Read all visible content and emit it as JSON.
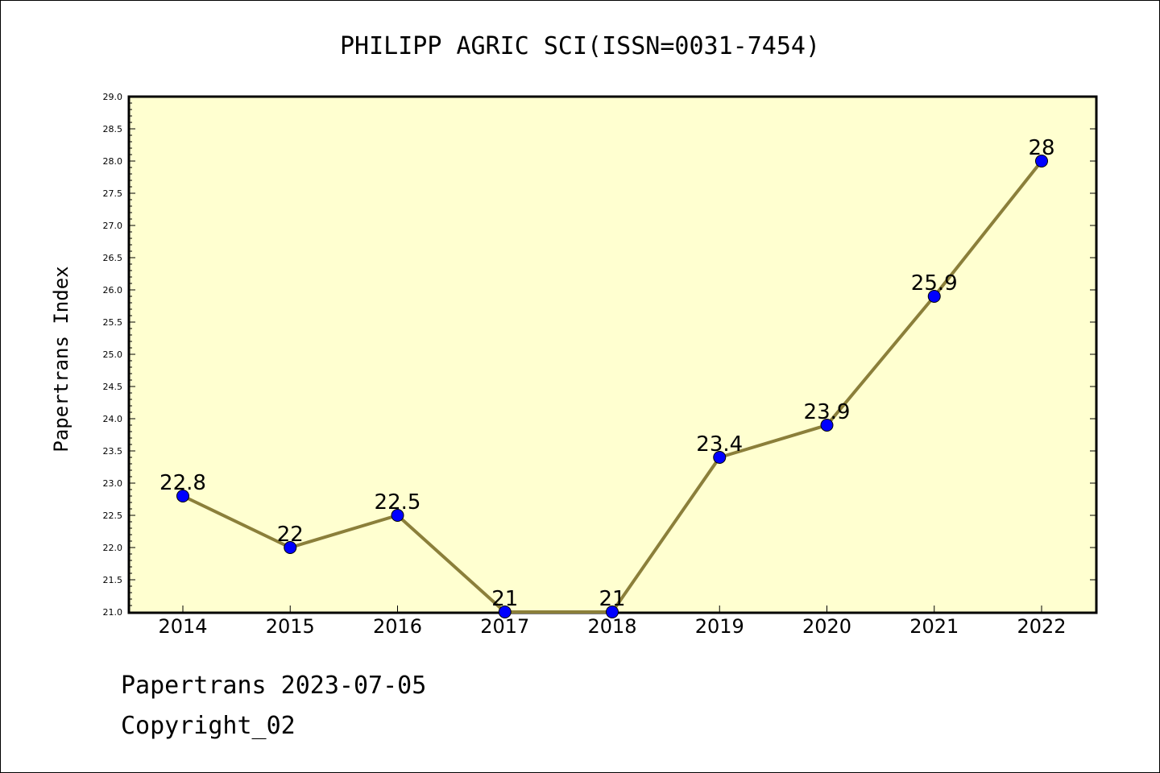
{
  "chart_data": {
    "type": "line",
    "title": "PHILIPP AGRIC SCI(ISSN=0031-7454)",
    "xlabel": "",
    "ylabel": "Papertrans Index",
    "categories": [
      "2014",
      "2015",
      "2016",
      "2017",
      "2018",
      "2019",
      "2020",
      "2021",
      "2022"
    ],
    "values": [
      22.8,
      22,
      22.5,
      21,
      21,
      23.4,
      23.9,
      25.9,
      28
    ],
    "data_labels": [
      "22.8",
      "22",
      "22.5",
      "21",
      "21",
      "23.4",
      "23.9",
      "25.9",
      "28"
    ],
    "ylim": [
      21.0,
      29.0
    ],
    "yticks": [
      "21.0",
      "21.5",
      "22.0",
      "22.5",
      "23.0",
      "23.5",
      "24.0",
      "24.5",
      "25.0",
      "25.5",
      "26.0",
      "26.5",
      "27.0",
      "27.5",
      "28.0",
      "28.5",
      "29.0"
    ],
    "grid": false,
    "colors": {
      "plot_background": "#ffffd0",
      "line": "#8b7f3a",
      "marker": "#0000ff"
    }
  },
  "footer": {
    "line1": "Papertrans 2023-07-05",
    "line2": "Copyright_02"
  }
}
